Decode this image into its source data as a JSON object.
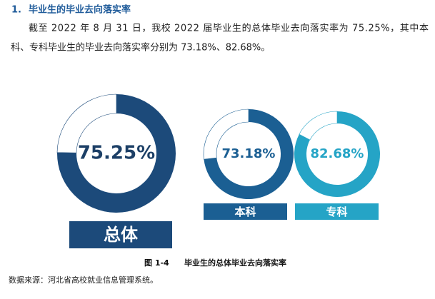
{
  "heading": {
    "number": "1.",
    "title": "毕业生的毕业去向落实率"
  },
  "paragraph": [
    "截至 2022 年 8 月 31 日，我校 2022 届毕业生的总体毕业去向落实率为 75.25%，其中本",
    "科、专科毕业生的毕业去向落实率分别为 73.18%、82.68%。"
  ],
  "chart_data": [
    {
      "type": "donut",
      "categories": [
        "总体"
      ],
      "values": [
        75.25
      ],
      "value_labels": [
        "75.25%"
      ],
      "color": "#1c4a7a"
    },
    {
      "type": "donut",
      "categories": [
        "本科"
      ],
      "values": [
        73.18
      ],
      "value_labels": [
        "73.18%"
      ],
      "color": "#1b5f93"
    },
    {
      "type": "donut",
      "categories": [
        "专科"
      ],
      "values": [
        82.68
      ],
      "value_labels": [
        "82.68%"
      ],
      "color": "#25a4c6"
    }
  ],
  "caption": {
    "number": "图 1-4",
    "title": "毕业生的总体毕业去向落实率"
  },
  "source": "数据来源：河北省高校就业信息管理系统。"
}
